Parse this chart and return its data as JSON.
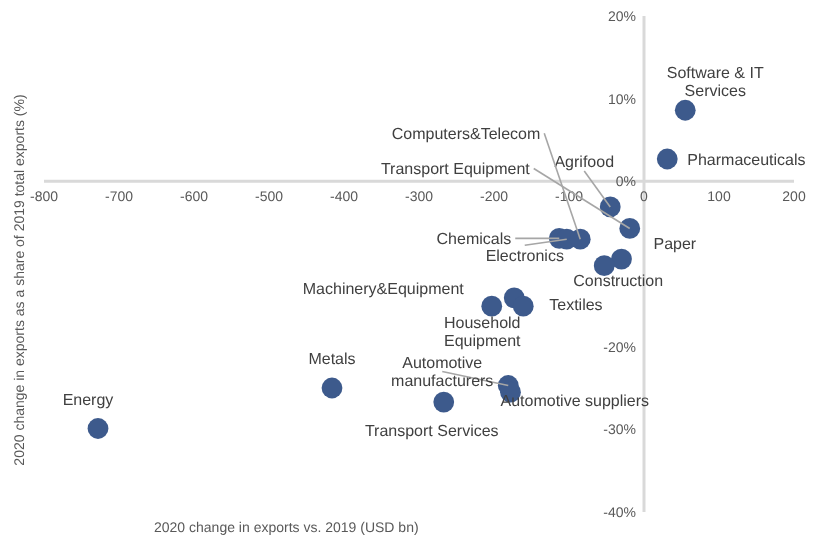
{
  "chart_data": {
    "type": "scatter",
    "xlabel": "2020 change in exports vs. 2019 (USD bn)",
    "ylabel": "2020 change in exports as a share of 2019 total exports (%)",
    "x": [
      55,
      31,
      -45,
      -19,
      -113,
      -103,
      -85,
      -30,
      -53,
      -203,
      -173,
      -161,
      -416,
      -181,
      -178,
      -267,
      -728
    ],
    "values": [
      8.6,
      2.7,
      -3.1,
      -5.7,
      -6.9,
      -7.0,
      -7.0,
      -9.4,
      -10.2,
      -15.1,
      -14.1,
      -15.1,
      -25.0,
      -24.7,
      -25.5,
      -26.7,
      -29.9
    ],
    "value_labels": [
      "Software & IT Services",
      "Pharmaceuticals",
      "Agrifood",
      "Transport Equipment",
      "Chemicals",
      "Electronics",
      "Computers&Telecom",
      "Paper",
      "Construction",
      "Machinery&Equipment",
      "Household Equipment",
      "Textiles",
      "Metals",
      "Automotive manufacturers",
      "Automotive suppliers",
      "Transport Services",
      "Energy"
    ],
    "color": "#3d5a8c",
    "marker": "circle",
    "grid": false,
    "xlim": [
      -800,
      200
    ],
    "xticks": [
      -800,
      -700,
      -600,
      -500,
      -400,
      -300,
      -200,
      -100,
      0,
      100,
      200
    ],
    "ylim": [
      -40,
      20
    ],
    "yticks": [
      {
        "value": 20,
        "label": "20%"
      },
      {
        "value": 10,
        "label": "10%"
      },
      {
        "value": 0,
        "label": "0%"
      },
      {
        "value": -20,
        "label": "-20%"
      },
      {
        "value": -30,
        "label": "-30%"
      },
      {
        "value": -40,
        "label": "-40%"
      }
    ]
  }
}
